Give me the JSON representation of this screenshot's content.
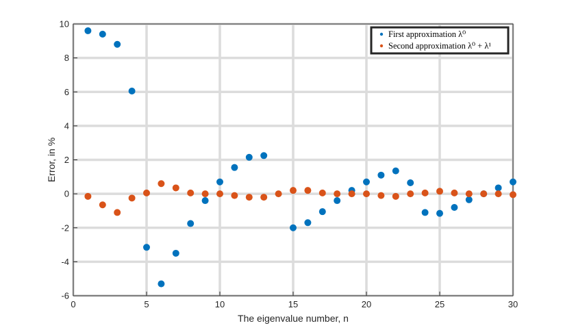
{
  "chart_data": {
    "type": "scatter",
    "xlabel": "The eigenvalue number, n",
    "ylabel": "Error, in %",
    "xlim": [
      0,
      30
    ],
    "ylim": [
      -6,
      10
    ],
    "xticks": [
      0,
      5,
      10,
      15,
      20,
      25,
      30
    ],
    "yticks": [
      -6,
      -4,
      -2,
      0,
      2,
      4,
      6,
      8,
      10
    ],
    "grid": true,
    "legend_position": "top-right",
    "series": [
      {
        "name": "First approximation λ⁰",
        "color": "#0072BD",
        "x": [
          1,
          2,
          3,
          4,
          5,
          6,
          7,
          8,
          9,
          10,
          11,
          12,
          13,
          14,
          15,
          16,
          17,
          18,
          19,
          20,
          21,
          22,
          23,
          24,
          25,
          26,
          27,
          28,
          29,
          30
        ],
        "y": [
          9.6,
          9.4,
          8.8,
          6.05,
          -3.15,
          -5.3,
          -3.5,
          -1.75,
          -0.4,
          0.7,
          1.55,
          2.15,
          2.25,
          null,
          -2.0,
          -1.7,
          -1.05,
          -0.4,
          0.2,
          0.7,
          1.1,
          1.35,
          0.65,
          -1.1,
          -1.15,
          -0.8,
          -0.35,
          0.0,
          0.35,
          0.7
        ]
      },
      {
        "name": "Second approximation λ⁰ + λ¹",
        "color": "#D95319",
        "x": [
          1,
          2,
          3,
          4,
          5,
          6,
          7,
          8,
          9,
          10,
          11,
          12,
          13,
          14,
          15,
          16,
          17,
          18,
          19,
          20,
          21,
          22,
          23,
          24,
          25,
          26,
          27,
          28,
          29,
          30
        ],
        "y": [
          -0.15,
          -0.65,
          -1.1,
          -0.25,
          0.05,
          0.6,
          0.35,
          0.05,
          0.0,
          0.0,
          -0.1,
          -0.2,
          -0.2,
          0.0,
          0.2,
          0.2,
          0.05,
          0.0,
          0.0,
          0.0,
          -0.1,
          -0.15,
          0.0,
          0.05,
          0.15,
          0.05,
          0.0,
          0.0,
          0.0,
          -0.05
        ]
      }
    ]
  }
}
